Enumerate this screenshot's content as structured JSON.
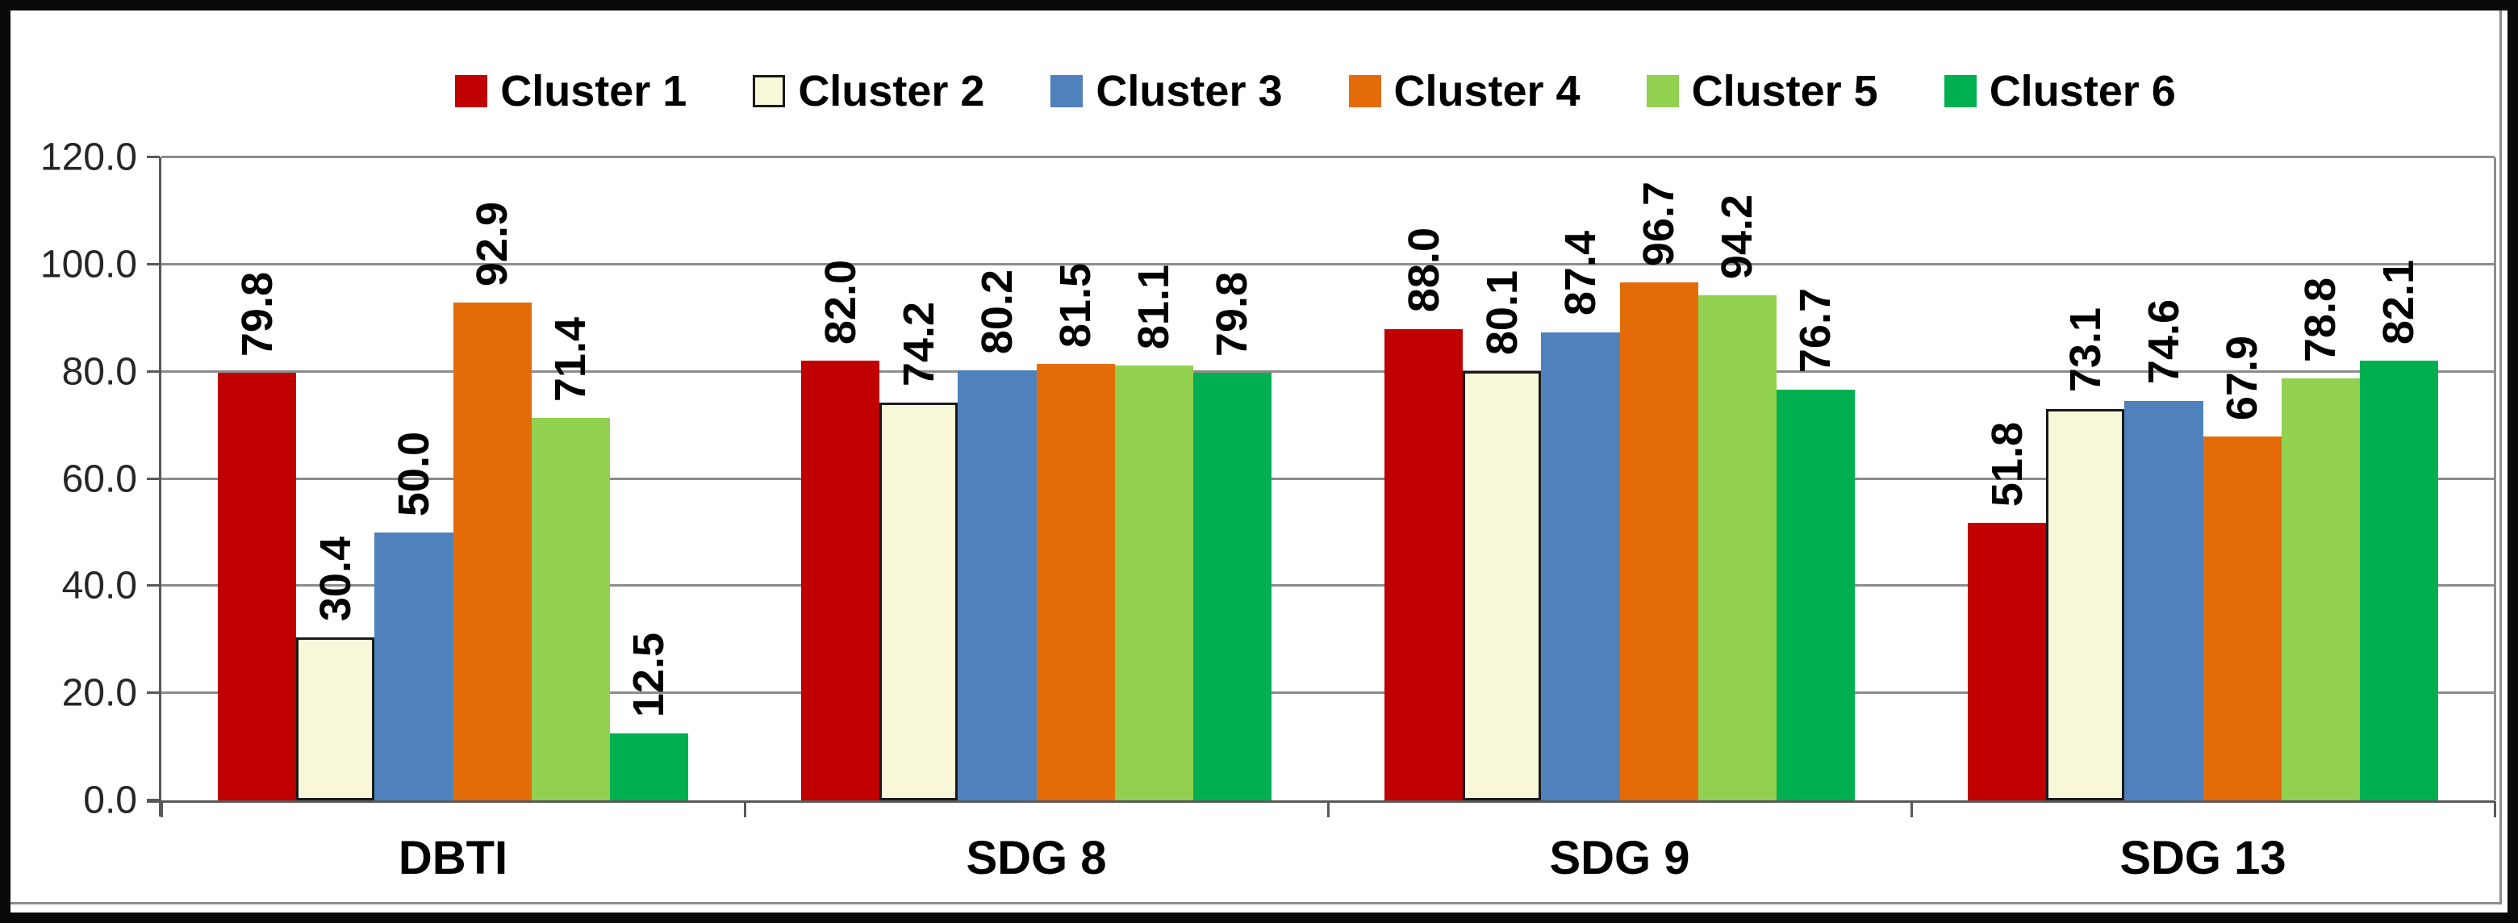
{
  "colors": {
    "frame": "#0a0a0a",
    "chart_border": "#8c8c8c",
    "gridline": "#8c8c8c",
    "axis": "#595959",
    "tick_label": "#262626",
    "value_label": "#000000",
    "cluster2_outline": "#1a1a1a"
  },
  "chart_data": {
    "type": "bar",
    "title": "",
    "categories": [
      "DBTI",
      "SDG 8",
      "SDG 9",
      "SDG 13"
    ],
    "series": [
      {
        "name": "Cluster 1",
        "color": "#C00000",
        "values": [
          79.8,
          82.0,
          88.0,
          51.8
        ]
      },
      {
        "name": "Cluster 2",
        "color": "#F8F8D8",
        "outline": "#1a1a1a",
        "values": [
          30.4,
          74.2,
          80.1,
          73.1
        ]
      },
      {
        "name": "Cluster 3",
        "color": "#4F81BD",
        "values": [
          50.0,
          80.2,
          87.4,
          74.6
        ]
      },
      {
        "name": "Cluster 4",
        "color": "#E36C09",
        "values": [
          92.9,
          81.5,
          96.7,
          67.9
        ]
      },
      {
        "name": "Cluster 5",
        "color": "#92D050",
        "values": [
          71.4,
          81.1,
          94.2,
          78.8
        ]
      },
      {
        "name": "Cluster 6",
        "color": "#00B050",
        "values": [
          12.5,
          79.8,
          76.7,
          82.1
        ]
      }
    ],
    "ylim": [
      0,
      120
    ],
    "ytick_step": 20,
    "yticks": [
      "0.0",
      "20.0",
      "40.0",
      "60.0",
      "80.0",
      "100.0",
      "120.0"
    ],
    "value_label_format": "one_decimal",
    "value_label_rotation": "bottom_to_top",
    "grid": "horizontal",
    "legend_position": "top-center",
    "xlabel": "",
    "ylabel": ""
  }
}
